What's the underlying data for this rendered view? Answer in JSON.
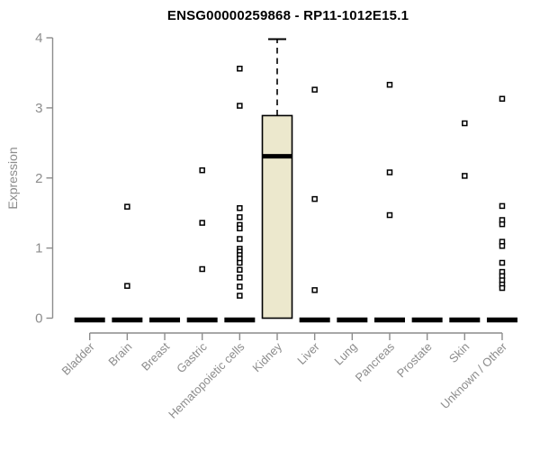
{
  "chart_data": {
    "type": "boxplot",
    "title": "ENSG00000259868 - RP11-1012E15.1",
    "ylabel": "Expression",
    "ylim": [
      0,
      4
    ],
    "yticks": [
      0,
      1,
      2,
      3,
      4
    ],
    "categories": [
      "Bladder",
      "Brain",
      "Breast",
      "Gastric",
      "Hematopoietic cells",
      "Kidney",
      "Liver",
      "Lung",
      "Pancreas",
      "Prostate",
      "Skin",
      "Unknown / Other"
    ],
    "boxes": [
      {
        "category": "Bladder",
        "q1": 0,
        "median": 0,
        "q3": 0,
        "whisker_low": 0,
        "whisker_high": 0,
        "outliers": []
      },
      {
        "category": "Brain",
        "q1": 0,
        "median": 0,
        "q3": 0,
        "whisker_low": 0,
        "whisker_high": 0,
        "outliers": [
          1.59,
          0.46
        ]
      },
      {
        "category": "Breast",
        "q1": 0,
        "median": 0,
        "q3": 0,
        "whisker_low": 0,
        "whisker_high": 0,
        "outliers": []
      },
      {
        "category": "Gastric",
        "q1": 0,
        "median": 0,
        "q3": 0,
        "whisker_low": 0,
        "whisker_high": 0,
        "outliers": [
          2.11,
          1.36,
          0.7
        ]
      },
      {
        "category": "Hematopoietic cells",
        "q1": 0,
        "median": 0,
        "q3": 0,
        "whisker_low": 0,
        "whisker_high": 0,
        "outliers": [
          3.56,
          3.03,
          1.57,
          1.44,
          1.33,
          1.28,
          1.13,
          0.99,
          0.95,
          0.9,
          0.85,
          0.79,
          0.69,
          0.58,
          0.45,
          0.32
        ]
      },
      {
        "category": "Kidney",
        "q1": 0,
        "median": 2.31,
        "q3": 2.89,
        "whisker_low": 0,
        "whisker_high": 3.98,
        "outliers": []
      },
      {
        "category": "Liver",
        "q1": 0,
        "median": 0,
        "q3": 0,
        "whisker_low": 0,
        "whisker_high": 0,
        "outliers": [
          3.26,
          1.7,
          0.4
        ]
      },
      {
        "category": "Lung",
        "q1": 0,
        "median": 0,
        "q3": 0,
        "whisker_low": 0,
        "whisker_high": 0,
        "outliers": []
      },
      {
        "category": "Pancreas",
        "q1": 0,
        "median": 0,
        "q3": 0,
        "whisker_low": 0,
        "whisker_high": 0,
        "outliers": [
          3.33,
          2.08,
          1.47
        ]
      },
      {
        "category": "Prostate",
        "q1": 0,
        "median": 0,
        "q3": 0,
        "whisker_low": 0,
        "whisker_high": 0,
        "outliers": []
      },
      {
        "category": "Skin",
        "q1": 0,
        "median": 0,
        "q3": 0,
        "whisker_low": 0,
        "whisker_high": 0,
        "outliers": [
          2.78,
          2.03
        ]
      },
      {
        "category": "Unknown / Other",
        "q1": 0,
        "median": 0,
        "q3": 0,
        "whisker_low": 0,
        "whisker_high": 0,
        "outliers": [
          3.13,
          1.6,
          1.4,
          1.34,
          1.09,
          1.03,
          0.79,
          0.66,
          0.6,
          0.54,
          0.48,
          0.43
        ]
      }
    ],
    "layout_hints": {
      "grid": false,
      "legend": false,
      "x_label_rotation_deg": -45
    },
    "colors": {
      "box_fill": "#ece8cd",
      "box_stroke": "#000000",
      "median": "#000000",
      "zero_bar": "#000000",
      "axis": "#8c8c8c",
      "labels": "#8c8c8c",
      "title": "#000000",
      "outlier_fill": "#ffffff",
      "outlier_stroke": "#000000",
      "background": "#ffffff"
    }
  }
}
